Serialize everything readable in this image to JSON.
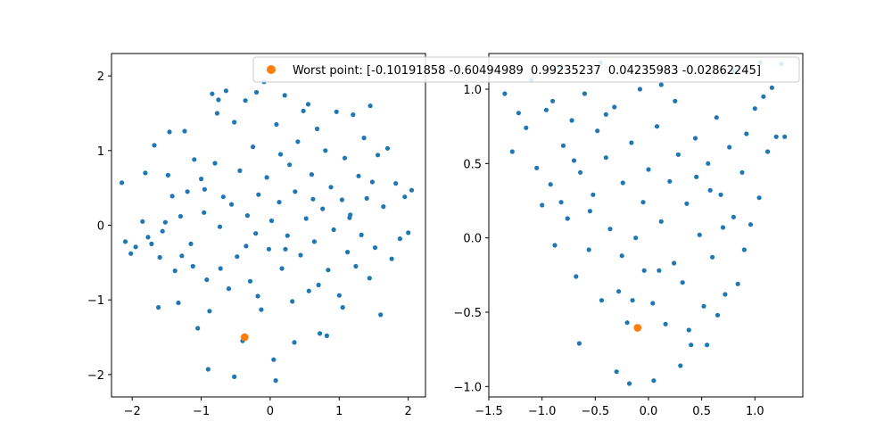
{
  "chart_data": [
    {
      "type": "scatter",
      "xlim": [
        -2.3,
        2.25
      ],
      "ylim": [
        -2.3,
        2.3
      ],
      "xticks": [
        -2,
        -1,
        0,
        1,
        2
      ],
      "yticks": [
        -2,
        -1,
        0,
        1,
        2
      ],
      "xtick_labels": [
        "−2",
        "−1",
        "0",
        "1",
        "2"
      ],
      "ytick_labels": [
        "−2",
        "−1",
        "0",
        "1",
        "2"
      ],
      "grid": false,
      "series": [
        {
          "color": "#1f77b4",
          "points": [
            [
              -2.15,
              0.57
            ],
            [
              -2.1,
              -0.22
            ],
            [
              -2.02,
              -0.38
            ],
            [
              -1.95,
              -0.29
            ],
            [
              -1.85,
              0.05
            ],
            [
              -1.81,
              0.7
            ],
            [
              -1.77,
              -0.16
            ],
            [
              -1.72,
              -0.25
            ],
            [
              -1.68,
              1.07
            ],
            [
              -1.6,
              -0.43
            ],
            [
              -1.56,
              -0.08
            ],
            [
              -1.52,
              0.04
            ],
            [
              -1.48,
              0.67
            ],
            [
              -1.42,
              0.39
            ],
            [
              -1.38,
              -0.61
            ],
            [
              -1.33,
              -1.04
            ],
            [
              -1.28,
              -0.41
            ],
            [
              -1.24,
              1.26
            ],
            [
              -1.2,
              0.45
            ],
            [
              -1.15,
              -0.25
            ],
            [
              -1.1,
              0.88
            ],
            [
              -1.05,
              -1.38
            ],
            [
              -1.0,
              0.62
            ],
            [
              -0.96,
              0.17
            ],
            [
              -0.92,
              -0.73
            ],
            [
              -0.88,
              -1.15
            ],
            [
              -0.84,
              1.76
            ],
            [
              -0.8,
              0.83
            ],
            [
              -0.77,
              1.5
            ],
            [
              -0.73,
              -0.02
            ],
            [
              -0.68,
              0.38
            ],
            [
              -0.64,
              1.8
            ],
            [
              -0.6,
              -0.85
            ],
            [
              -0.56,
              0.28
            ],
            [
              -0.52,
              1.38
            ],
            [
              -0.48,
              -0.42
            ],
            [
              -0.44,
              0.73
            ],
            [
              -0.4,
              -1.55
            ],
            [
              -0.36,
              1.67
            ],
            [
              -0.33,
              0.13
            ],
            [
              -0.29,
              -0.75
            ],
            [
              -0.25,
              1.05
            ],
            [
              -0.21,
              -0.11
            ],
            [
              -0.17,
              0.41
            ],
            [
              -0.13,
              -1.13
            ],
            [
              -0.09,
              1.92
            ],
            [
              -0.05,
              0.64
            ],
            [
              -0.02,
              -0.32
            ],
            [
              0.02,
              0.06
            ],
            [
              0.05,
              -1.8
            ],
            [
              0.09,
              1.35
            ],
            [
              0.13,
              0.31
            ],
            [
              0.17,
              -0.58
            ],
            [
              0.21,
              1.74
            ],
            [
              0.25,
              -0.14
            ],
            [
              0.28,
              0.81
            ],
            [
              0.32,
              -1.02
            ],
            [
              0.36,
              0.45
            ],
            [
              0.4,
              1.12
            ],
            [
              0.44,
              -0.4
            ],
            [
              0.48,
              1.53
            ],
            [
              0.52,
              0.09
            ],
            [
              0.56,
              -0.88
            ],
            [
              0.6,
              0.68
            ],
            [
              0.64,
              -0.22
            ],
            [
              0.68,
              1.29
            ],
            [
              0.72,
              -1.45
            ],
            [
              0.76,
              0.22
            ],
            [
              0.8,
              1.0
            ],
            [
              0.84,
              -0.6
            ],
            [
              0.88,
              0.51
            ],
            [
              0.92,
              -0.06
            ],
            [
              0.96,
              1.52
            ],
            [
              1.0,
              -0.94
            ],
            [
              1.04,
              0.34
            ],
            [
              1.08,
              0.9
            ],
            [
              1.12,
              -0.36
            ],
            [
              1.16,
              0.14
            ],
            [
              1.2,
              1.48
            ],
            [
              1.24,
              -0.55
            ],
            [
              1.28,
              0.66
            ],
            [
              1.32,
              -0.13
            ],
            [
              1.36,
              1.17
            ],
            [
              1.4,
              0.36
            ],
            [
              1.44,
              -0.71
            ],
            [
              1.48,
              0.58
            ],
            [
              1.52,
              -0.3
            ],
            [
              1.56,
              0.94
            ],
            [
              1.6,
              -1.2
            ],
            [
              1.64,
              0.25
            ],
            [
              1.7,
              1.03
            ],
            [
              1.76,
              -0.45
            ],
            [
              1.82,
              0.56
            ],
            [
              1.88,
              -0.18
            ],
            [
              1.95,
              0.38
            ],
            [
              2.0,
              -0.1
            ],
            [
              2.05,
              0.47
            ],
            [
              -1.62,
              -1.1
            ],
            [
              -1.46,
              1.25
            ],
            [
              -0.9,
              -1.93
            ],
            [
              -0.52,
              -2.03
            ],
            [
              0.08,
              -2.08
            ],
            [
              0.35,
              -1.57
            ],
            [
              0.82,
              -1.48
            ],
            [
              1.05,
              -1.1
            ],
            [
              1.45,
              1.6
            ],
            [
              -0.75,
              1.68
            ],
            [
              -0.2,
              1.78
            ],
            [
              0.55,
              1.62
            ],
            [
              0.15,
              0.95
            ],
            [
              -1.3,
              0.12
            ],
            [
              -1.12,
              -0.55
            ],
            [
              -0.72,
              -0.58
            ],
            [
              -0.35,
              -0.28
            ],
            [
              0.22,
              -0.32
            ],
            [
              0.62,
              0.35
            ],
            [
              1.15,
              0.1
            ],
            [
              -0.95,
              0.48
            ],
            [
              0.7,
              -0.8
            ],
            [
              -0.18,
              -0.95
            ]
          ]
        },
        {
          "color": "#ff7f0e",
          "points": [
            [
              -0.37,
              -1.5
            ]
          ]
        }
      ]
    },
    {
      "type": "scatter",
      "xlim": [
        -1.5,
        1.45
      ],
      "ylim": [
        -1.07,
        1.24
      ],
      "xticks": [
        -1.5,
        -1.0,
        -0.5,
        0.0,
        0.5,
        1.0
      ],
      "yticks": [
        -1.0,
        -0.5,
        0.0,
        0.5,
        1.0
      ],
      "xtick_labels": [
        "−1.5",
        "−1.0",
        "−0.5",
        "0.0",
        "0.5",
        "1.0"
      ],
      "ytick_labels": [
        "−1.0",
        "−0.5",
        "0.0",
        "0.5",
        "1.0"
      ],
      "grid": false,
      "series": [
        {
          "color": "#1f77b4",
          "points": [
            [
              -1.35,
              0.97
            ],
            [
              -1.28,
              0.58
            ],
            [
              -1.22,
              0.84
            ],
            [
              -1.15,
              0.74
            ],
            [
              -1.1,
              1.06
            ],
            [
              -1.05,
              0.47
            ],
            [
              -1.0,
              0.22
            ],
            [
              -0.96,
              0.86
            ],
            [
              -0.92,
              0.36
            ],
            [
              -0.88,
              -0.05
            ],
            [
              -0.84,
              1.15
            ],
            [
              -0.8,
              0.62
            ],
            [
              -0.76,
              0.13
            ],
            [
              -0.72,
              0.79
            ],
            [
              -0.68,
              -0.26
            ],
            [
              -0.64,
              0.44
            ],
            [
              -0.6,
              0.97
            ],
            [
              -0.56,
              -0.08
            ],
            [
              -0.52,
              0.29
            ],
            [
              -0.48,
              0.72
            ],
            [
              -0.44,
              -0.42
            ],
            [
              -0.4,
              0.54
            ],
            [
              -0.36,
              0.06
            ],
            [
              -0.32,
              0.88
            ],
            [
              -0.28,
              -0.36
            ],
            [
              -0.24,
              0.37
            ],
            [
              -0.2,
              -0.57
            ],
            [
              -0.16,
              0.64
            ],
            [
              -0.12,
              0.0
            ],
            [
              -0.08,
              1.0
            ],
            [
              -0.04,
              -0.22
            ],
            [
              0.0,
              0.46
            ],
            [
              0.04,
              -0.44
            ],
            [
              0.08,
              0.75
            ],
            [
              0.12,
              0.11
            ],
            [
              0.16,
              -0.58
            ],
            [
              0.2,
              0.38
            ],
            [
              0.24,
              -0.17
            ],
            [
              0.28,
              0.56
            ],
            [
              0.32,
              -0.3
            ],
            [
              0.36,
              0.23
            ],
            [
              0.4,
              -0.72
            ],
            [
              0.44,
              0.67
            ],
            [
              0.48,
              0.02
            ],
            [
              0.52,
              -0.46
            ],
            [
              0.56,
              0.5
            ],
            [
              0.6,
              -0.13
            ],
            [
              0.64,
              0.81
            ],
            [
              0.68,
              0.29
            ],
            [
              0.72,
              -0.38
            ],
            [
              0.76,
              0.61
            ],
            [
              0.8,
              0.14
            ],
            [
              0.84,
              -0.31
            ],
            [
              0.88,
              0.44
            ],
            [
              0.92,
              0.7
            ],
            [
              0.96,
              0.09
            ],
            [
              1.0,
              0.87
            ],
            [
              1.04,
              0.27
            ],
            [
              1.08,
              0.95
            ],
            [
              1.12,
              0.58
            ],
            [
              1.16,
              1.01
            ],
            [
              1.2,
              0.68
            ],
            [
              1.25,
              1.17
            ],
            [
              1.28,
              0.68
            ],
            [
              -0.65,
              -0.71
            ],
            [
              -0.3,
              -0.9
            ],
            [
              -0.18,
              -0.98
            ],
            [
              0.05,
              -0.96
            ],
            [
              0.3,
              -0.86
            ],
            [
              0.38,
              -0.62
            ],
            [
              0.55,
              -0.72
            ],
            [
              0.65,
              -0.52
            ],
            [
              -0.45,
              1.18
            ],
            [
              0.12,
              1.03
            ],
            [
              0.8,
              1.12
            ],
            [
              1.05,
              1.18
            ],
            [
              -0.9,
              0.92
            ],
            [
              -0.55,
              0.18
            ],
            [
              -0.05,
              0.24
            ],
            [
              0.25,
              0.92
            ],
            [
              0.7,
              0.07
            ],
            [
              -0.25,
              -0.12
            ],
            [
              0.45,
              0.41
            ],
            [
              -0.7,
              0.52
            ],
            [
              0.1,
              -0.22
            ],
            [
              -0.4,
              0.83
            ],
            [
              0.9,
              -0.08
            ],
            [
              -0.15,
              -0.42
            ],
            [
              0.58,
              0.32
            ],
            [
              -0.82,
              0.24
            ]
          ]
        },
        {
          "color": "#ff7f0e",
          "points": [
            [
              -0.102,
              -0.605
            ]
          ]
        }
      ]
    }
  ],
  "legend": {
    "label": "Worst point: [-0.10191858 -0.60494989  0.99235237  0.04235983 -0.02862245]",
    "color": "#ff7f0e"
  }
}
